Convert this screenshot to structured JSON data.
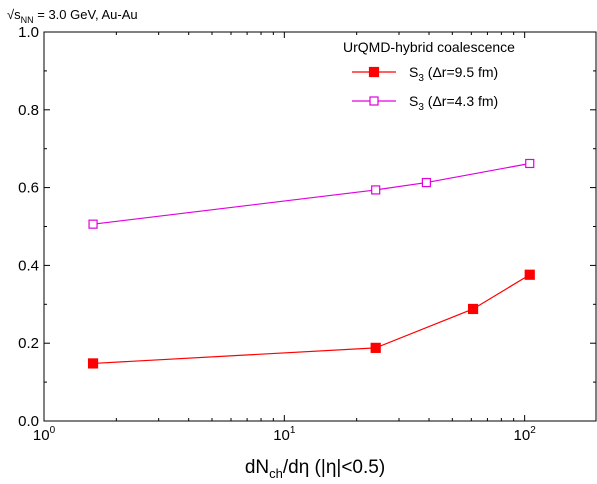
{
  "chart_data": {
    "type": "line",
    "annotation": {
      "sqrt_symbol": "√",
      "s_symbol": "s",
      "s_subscript": "NN",
      "text": " = 3.0 GeV, Au-Au"
    },
    "legend": {
      "title": "UrQMD-hybrid coalescence",
      "placement": "top-right"
    },
    "xlabel": {
      "part1": "dN",
      "subscript": "ch",
      "part2": "/dη (|η|<0.5)"
    },
    "xscale": "log",
    "xlim": [
      1,
      200
    ],
    "ylim": [
      0.0,
      1.0
    ],
    "x_ticks": [
      {
        "base": "10",
        "exp": "0",
        "value": 1
      },
      {
        "base": "10",
        "exp": "1",
        "value": 10
      },
      {
        "base": "10",
        "exp": "2",
        "value": 100
      }
    ],
    "y_ticks": [
      "0.0",
      "0.2",
      "0.4",
      "0.6",
      "0.8",
      "1.0"
    ],
    "grid": false,
    "series": [
      {
        "name_main": "S",
        "name_sub": "3",
        "name_rest": " (Δr=9.5 fm)",
        "color": "#ff0000",
        "marker": "filled-square",
        "x": [
          1.6,
          24,
          61,
          105
        ],
        "y": [
          0.148,
          0.188,
          0.288,
          0.376
        ]
      },
      {
        "name_main": "S",
        "name_sub": "3",
        "name_rest": " (Δr=4.3 fm)",
        "color": "#e000e0",
        "marker": "open-square",
        "x": [
          1.6,
          24,
          39,
          105
        ],
        "y": [
          0.506,
          0.594,
          0.613,
          0.662
        ]
      }
    ]
  }
}
